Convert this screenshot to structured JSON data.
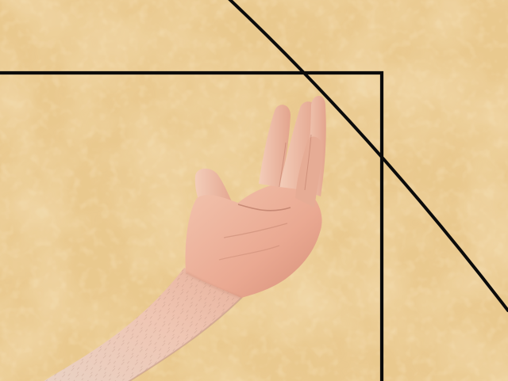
{
  "scene": {
    "description_visible_text": "",
    "colors": {
      "parchment_base": "#e8c68a",
      "parchment_light": "#f1d7a4",
      "parchment_dark": "#d6ad6b",
      "line": "#0b0b0b",
      "skin_light": "#f0c2ad",
      "skin_mid": "#e5a891",
      "skin_dark": "#c98a74",
      "skin_shadow": "#b87764",
      "arm_hair": "#9b6f5f"
    },
    "elements": [
      "parchment-background",
      "square-outline",
      "arc-curve",
      "raised-arm",
      "hand"
    ]
  }
}
